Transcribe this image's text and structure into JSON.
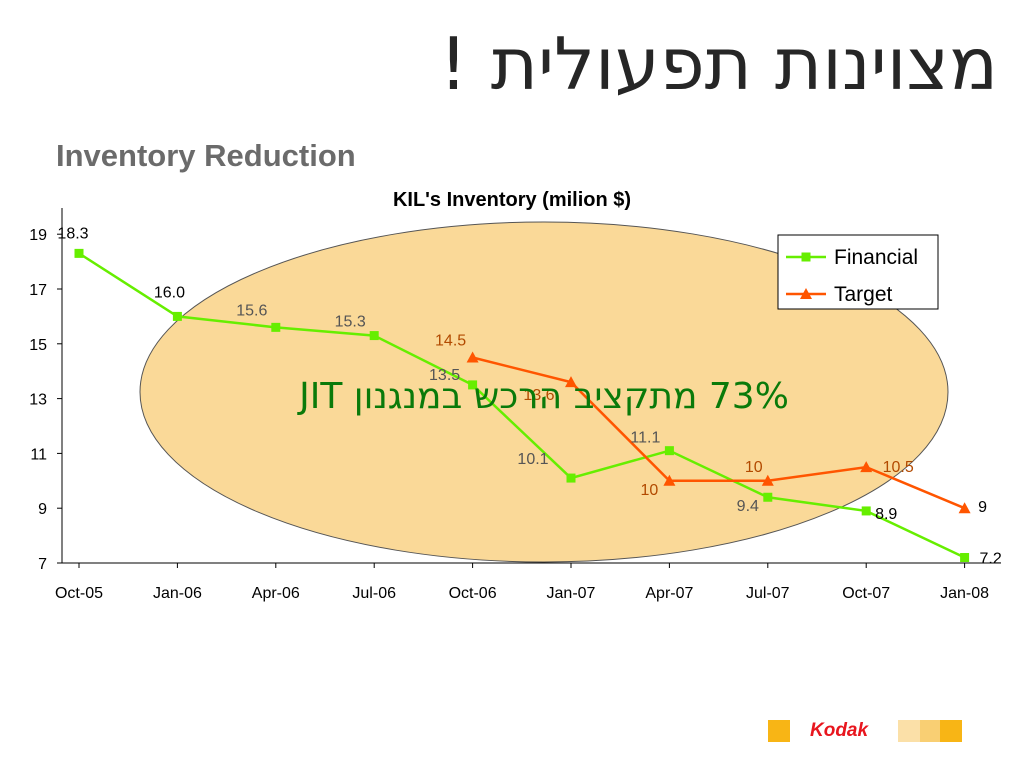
{
  "slide": {
    "title": "מצוינות תפעולית !",
    "subtitle": "Inventory Reduction",
    "callout": "73% מתקציב הרכש במנגנון JIT",
    "logo_text": "Kodak"
  },
  "colors": {
    "financial": "#66ee00",
    "target": "#ff5500",
    "ellipse_fill": "#fad998",
    "callout_text": "#0a7a0a",
    "kodak_red": "#e8161e",
    "kodak_yellow": "#f8b515"
  },
  "chart_data": {
    "type": "line",
    "title": "KIL's Inventory (milion $)",
    "categories": [
      "Oct-05",
      "Jan-06",
      "Apr-06",
      "Jul-06",
      "Oct-06",
      "Jan-07",
      "Apr-07",
      "Jul-07",
      "Oct-07",
      "Jan-08"
    ],
    "yticks": [
      7,
      9,
      11,
      13,
      15,
      17,
      19
    ],
    "ylim": [
      7,
      20
    ],
    "legend_position": "top-right",
    "series": [
      {
        "name": "Financial",
        "marker": "square",
        "values": [
          18.3,
          16.0,
          15.6,
          15.3,
          13.5,
          10.1,
          11.1,
          9.4,
          8.9,
          7.2
        ],
        "labels": [
          "18.3",
          "16.0",
          "15.6",
          "15.3",
          "13.5",
          "10.1",
          "11.1",
          "9.4",
          "8.9",
          "7.2"
        ]
      },
      {
        "name": "Target",
        "marker": "triangle",
        "values": [
          null,
          null,
          null,
          null,
          14.5,
          13.6,
          10,
          10,
          10.5,
          9
        ],
        "labels": [
          "",
          "",
          "",
          "",
          "14.5",
          "13.6",
          "10",
          "10",
          "10.5",
          "9"
        ]
      }
    ]
  }
}
